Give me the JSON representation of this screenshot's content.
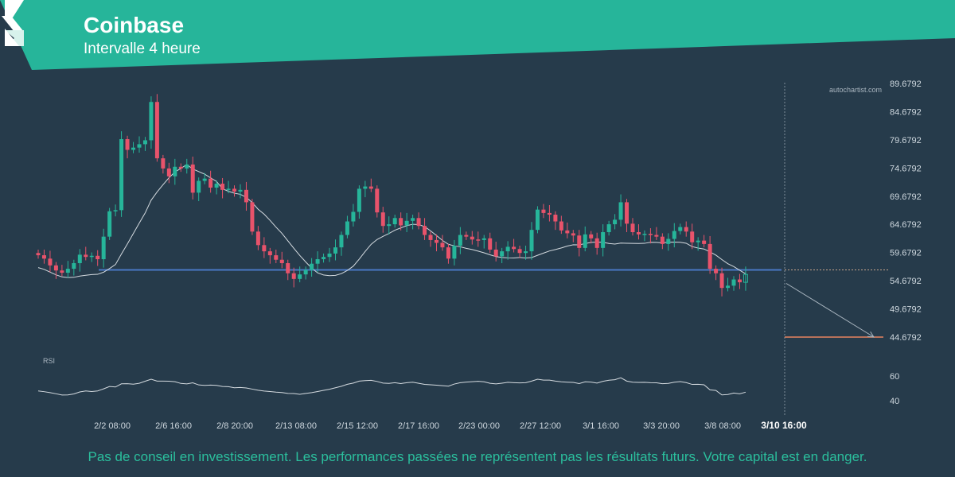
{
  "header": {
    "title": "Coinbase",
    "subtitle": "Intervalle 4 heure",
    "accent_color": "#26b59a",
    "icon": "coinbase-logo"
  },
  "watermark": "autochartist.com",
  "disclaimer": "Pas de conseil en investissement. Les performances passées ne représentent pas les résultats futurs. Votre capital est en danger.",
  "chart_data": {
    "type": "candlestick",
    "y_ticks": [
      "89.6792",
      "84.6792",
      "79.6792",
      "74.6792",
      "69.6792",
      "64.6792",
      "59.6792",
      "54.6792",
      "49.6792",
      "44.6792"
    ],
    "x_ticks": [
      "2/2 08:00",
      "2/6 16:00",
      "2/8 20:00",
      "2/13 08:00",
      "2/15 12:00",
      "2/17 16:00",
      "2/23 00:00",
      "2/27 12:00",
      "3/1 16:00",
      "3/3 20:00",
      "3/8 08:00",
      "3/10 16:00"
    ],
    "ylim": [
      43.9,
      90.2
    ],
    "up_color": "#26b59a",
    "down_color": "#e8536b",
    "support_level": 56.6,
    "support_color": "#4a78c4",
    "target_level": 44.6792,
    "target_color": "#e8855f",
    "forecast_line": {
      "from": 54.2,
      "to": 44.6792
    },
    "closes": [
      59.2,
      58.6,
      57.4,
      56.5,
      56.1,
      56.8,
      57.8,
      59.3,
      58.9,
      59.1,
      58.5,
      62.5,
      67.0,
      67.2,
      79.8,
      77.9,
      78.3,
      78.9,
      79.6,
      86.4,
      76.4,
      74.6,
      73.2,
      74.9,
      74.6,
      75.3,
      70.3,
      72.4,
      72.8,
      71.2,
      71.9,
      70.8,
      71.0,
      70.5,
      70.8,
      68.6,
      63.4,
      61.0,
      59.9,
      59.2,
      58.4,
      57.8,
      56.0,
      55.0,
      55.8,
      56.6,
      57.7,
      58.5,
      58.9,
      59.5,
      60.6,
      62.8,
      65.2,
      66.9,
      71.0,
      71.4,
      71.0,
      66.8,
      64.4,
      64.7,
      65.8,
      64.5,
      65.3,
      65.8,
      64.4,
      62.8,
      61.9,
      61.4,
      60.6,
      58.6,
      60.9,
      62.8,
      62.5,
      62.0,
      61.9,
      62.2,
      60.2,
      59.0,
      59.9,
      60.7,
      60.3,
      59.6,
      59.9,
      63.7,
      67.3,
      66.7,
      66.4,
      65.2,
      63.6,
      63.1,
      62.7,
      60.5,
      62.9,
      62.2,
      60.5,
      63.3,
      64.7,
      65.5,
      68.6,
      64.8,
      63.3,
      62.9,
      63.0,
      62.8,
      62.5,
      61.2,
      62.1,
      63.5,
      64.2,
      63.4,
      61.5,
      61.8,
      61.2,
      56.8,
      56.0,
      53.4,
      53.8,
      54.9,
      54.4,
      55.8
    ],
    "rsi": {
      "label": "RSI",
      "y_ticks": [
        "60",
        "40"
      ],
      "ylim": [
        32,
        69
      ],
      "values": [
        47.9,
        47.3,
        46.5,
        45.6,
        44.6,
        44.7,
        45.5,
        47.1,
        47.9,
        47.4,
        47.9,
        49.6,
        51.5,
        51.1,
        53.7,
        53.8,
        53.4,
        54.1,
        55.8,
        57.4,
        55.9,
        55.9,
        55.8,
        55.4,
        54.0,
        53.6,
        54.5,
        52.8,
        52.4,
        52.7,
        52.4,
        51.5,
        51.4,
        50.5,
        50.7,
        50.3,
        49.4,
        48.5,
        47.8,
        47.4,
        46.9,
        46.6,
        45.9,
        45.8,
        45.2,
        45.9,
        46.5,
        47.4,
        48.4,
        49.3,
        50.5,
        51.7,
        53.3,
        54.3,
        55.9,
        56.3,
        56.5,
        55.6,
        54.3,
        54.0,
        54.6,
        53.9,
        54.6,
        55.0,
        54.1,
        53.2,
        52.9,
        52.6,
        52.2,
        51.8,
        53.5,
        54.6,
        55.1,
        55.4,
        55.7,
        55.3,
        54.1,
        53.6,
        54.2,
        54.9,
        54.6,
        54.4,
        54.6,
        55.9,
        57.4,
        56.7,
        56.7,
        55.9,
        55.3,
        55.0,
        54.8,
        53.9,
        55.3,
        55.1,
        54.3,
        55.7,
        56.6,
        57.0,
        58.6,
        55.9,
        55.0,
        54.8,
        54.9,
        54.6,
        54.5,
        53.8,
        54.0,
        55.0,
        55.5,
        54.7,
        53.2,
        53.3,
        52.9,
        48.8,
        48.3,
        44.7,
        45.0,
        46.2,
        45.6,
        46.9
      ]
    }
  }
}
